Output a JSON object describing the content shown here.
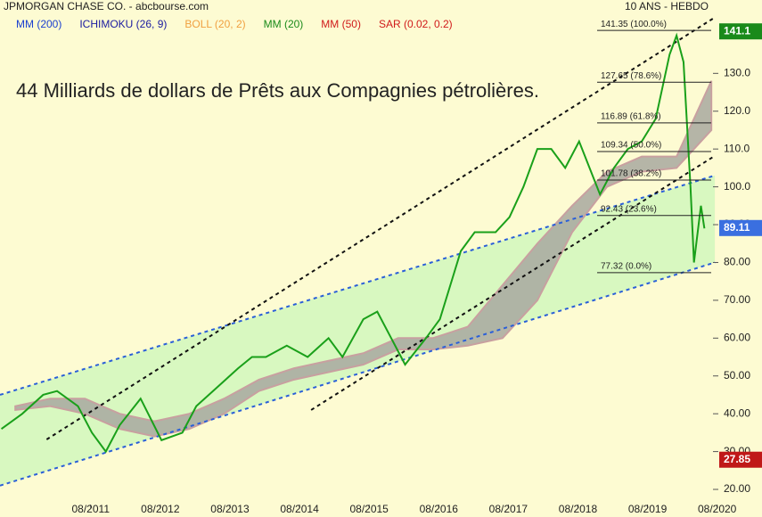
{
  "chart_data": {
    "type": "line",
    "title": "JPMORGAN CHASE CO. - abcbourse.com",
    "subtitle": "10 ANS - HEBDO",
    "annotation": "44 Milliards de dollars de Prêts aux Compagnies pétrolières.",
    "indicators": [
      {
        "name": "MM (200)",
        "color": "#1a3fd0"
      },
      {
        "name": "ICHIMOKU (26, 9)",
        "color": "#1a1aa0"
      },
      {
        "name": "BOLL (20, 2)",
        "color": "#f0a040"
      },
      {
        "name": "MM (20)",
        "color": "#1a8a1a"
      },
      {
        "name": "MM (50)",
        "color": "#d01a1a"
      },
      {
        "name": "SAR (0.02, 0.2)",
        "color": "#d01a1a"
      }
    ],
    "price": {
      "color": "#1aa01a",
      "x": [
        2010.3,
        2010.6,
        2010.9,
        2011.1,
        2011.4,
        2011.6,
        2011.8,
        2012.0,
        2012.3,
        2012.6,
        2012.9,
        2013.1,
        2013.4,
        2013.7,
        2013.9,
        2014.1,
        2014.4,
        2014.7,
        2015.0,
        2015.2,
        2015.5,
        2015.7,
        2015.9,
        2016.1,
        2016.4,
        2016.6,
        2016.9,
        2017.1,
        2017.4,
        2017.6,
        2017.8,
        2018.0,
        2018.2,
        2018.4,
        2018.6,
        2018.9,
        2019.1,
        2019.3,
        2019.5,
        2019.7,
        2019.9,
        2020.0,
        2020.1,
        2020.2,
        2020.25,
        2020.35,
        2020.4
      ],
      "values": [
        36,
        40,
        45,
        46,
        42,
        35,
        30,
        37,
        44,
        33,
        35,
        42,
        47,
        52,
        55,
        55,
        58,
        55,
        60,
        55,
        65,
        67,
        60,
        53,
        60,
        65,
        83,
        88,
        88,
        92,
        100,
        110,
        110,
        105,
        112,
        98,
        105,
        110,
        112,
        118,
        135,
        140,
        133,
        100,
        80,
        95,
        89
      ]
    },
    "cloud": {
      "upper_color": "#c8a0a0",
      "lower_color": "#a8a8a0",
      "x": [
        2010.5,
        2011.0,
        2011.5,
        2012.0,
        2012.5,
        2013.0,
        2013.5,
        2014.0,
        2014.5,
        2015.0,
        2015.5,
        2016.0,
        2016.5,
        2017.0,
        2017.5,
        2018.0,
        2018.5,
        2019.0,
        2019.5,
        2020.0,
        2020.5
      ],
      "upper": [
        42,
        44,
        44,
        40,
        38,
        40,
        44,
        49,
        52,
        54,
        56,
        60,
        60,
        63,
        74,
        85,
        95,
        104,
        108,
        108,
        128
      ],
      "lower": [
        41,
        42,
        40,
        36,
        34,
        36,
        40,
        46,
        49,
        51,
        53,
        57,
        57,
        58,
        60,
        70,
        88,
        100,
        104,
        105,
        115
      ]
    },
    "channels": [
      {
        "color": "#2a5fd8",
        "x": [
          2010.28,
          2020.55
        ],
        "values": [
          45,
          103
        ]
      },
      {
        "color": "#2a5fd8",
        "x": [
          2010.28,
          2020.55
        ],
        "values": [
          21,
          80
        ]
      },
      {
        "color": "#111111",
        "x": [
          2010.95,
          2020.55
        ],
        "values": [
          33.2,
          144.8
        ]
      },
      {
        "color": "#111111",
        "x": [
          2014.75,
          2020.55
        ],
        "values": [
          41,
          108.2
        ]
      }
    ],
    "channel_fill": "#d8f8c0",
    "fibonacci": [
      {
        "value": 141.35,
        "label": "141.35  (100.0%)"
      },
      {
        "value": 127.65,
        "label": "127.65  (78.6%)"
      },
      {
        "value": 116.89,
        "label": "116.89  (61.8%)"
      },
      {
        "value": 109.34,
        "label": "109.34  (50.0%)"
      },
      {
        "value": 101.78,
        "label": "101.78  (38.2%)"
      },
      {
        "value": 92.43,
        "label": "92.43  (23.6%)"
      },
      {
        "value": 77.32,
        "label": "77.32  (0.0%)"
      }
    ],
    "price_tags": [
      {
        "value": 141.1,
        "color": "#1a8a1a"
      },
      {
        "value": 89.11,
        "color": "#3a6fe0"
      },
      {
        "value": 27.85,
        "color": "#c01818"
      }
    ],
    "xlim": [
      2010.28,
      2020.6
    ],
    "ylim": [
      12.7,
      149.4
    ],
    "xticks": [
      {
        "value": 2011.583,
        "label": "08/2011"
      },
      {
        "value": 2012.583,
        "label": "08/2012"
      },
      {
        "value": 2013.583,
        "label": "08/2013"
      },
      {
        "value": 2014.583,
        "label": "08/2014"
      },
      {
        "value": 2015.583,
        "label": "08/2015"
      },
      {
        "value": 2016.583,
        "label": "08/2016"
      },
      {
        "value": 2017.583,
        "label": "08/2017"
      },
      {
        "value": 2018.583,
        "label": "08/2018"
      },
      {
        "value": 2019.583,
        "label": "08/2019"
      },
      {
        "value": 2020.583,
        "label": "08/2020"
      }
    ],
    "yticks": [
      {
        "value": 20,
        "label": "20.00"
      },
      {
        "value": 30,
        "label": "30.00"
      },
      {
        "value": 40,
        "label": "40.00"
      },
      {
        "value": 50,
        "label": "50.00"
      },
      {
        "value": 60,
        "label": "60.00"
      },
      {
        "value": 70,
        "label": "70.00"
      },
      {
        "value": 80,
        "label": "80.00"
      },
      {
        "value": 90,
        "label": "90.00"
      },
      {
        "value": 100,
        "label": "100.0"
      },
      {
        "value": 110,
        "label": "110.0"
      },
      {
        "value": 120,
        "label": "120.0"
      },
      {
        "value": 130,
        "label": "130.0"
      }
    ]
  }
}
